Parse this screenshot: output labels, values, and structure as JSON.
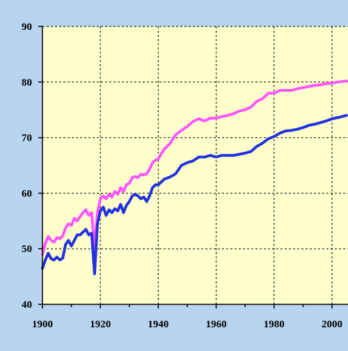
{
  "chart_data": {
    "type": "line",
    "title": "",
    "xlabel": "",
    "ylabel": "",
    "xlim": [
      1900,
      2005
    ],
    "ylim": [
      40,
      90
    ],
    "x_ticks": [
      1900,
      1920,
      1940,
      1960,
      1980,
      2000
    ],
    "y_ticks": [
      40,
      50,
      60,
      70,
      80,
      90
    ],
    "grid": true,
    "background": "#ffffcc",
    "page_background": "#b8d4f0",
    "series": [
      {
        "color": "#ff55ff",
        "x": [
          1900,
          1901,
          1902,
          1903,
          1904,
          1905,
          1906,
          1907,
          1908,
          1909,
          1910,
          1911,
          1912,
          1913,
          1914,
          1915,
          1916,
          1917,
          1918,
          1919,
          1920,
          1921,
          1922,
          1923,
          1924,
          1925,
          1926,
          1927,
          1928,
          1929,
          1930,
          1931,
          1932,
          1933,
          1934,
          1935,
          1936,
          1937,
          1938,
          1939,
          1940,
          1942,
          1944,
          1946,
          1948,
          1950,
          1952,
          1954,
          1956,
          1958,
          1960,
          1962,
          1964,
          1966,
          1968,
          1970,
          1972,
          1974,
          1976,
          1978,
          1980,
          1982,
          1984,
          1986,
          1988,
          1990,
          1992,
          1994,
          1996,
          1998,
          2000,
          2002,
          2005
        ],
        "values": [
          49.0,
          51.0,
          52.2,
          51.5,
          51.2,
          52.0,
          51.8,
          52.3,
          53.8,
          54.5,
          54.2,
          55.5,
          55.0,
          55.8,
          56.5,
          57.0,
          56.0,
          56.5,
          50.0,
          56.5,
          59.0,
          59.5,
          59.0,
          59.8,
          59.3,
          60.3,
          59.8,
          61.0,
          60.3,
          61.5,
          61.8,
          62.8,
          63.0,
          62.8,
          63.4,
          63.3,
          63.5,
          64.3,
          65.5,
          65.9,
          66.2,
          67.9,
          68.9,
          70.5,
          71.3,
          72.0,
          72.9,
          73.4,
          73.0,
          73.5,
          73.5,
          73.8,
          74.0,
          74.3,
          74.8,
          75.0,
          75.5,
          76.5,
          77.0,
          78.0,
          78.0,
          78.5,
          78.5,
          78.5,
          78.8,
          79.0,
          79.2,
          79.4,
          79.5,
          79.7,
          79.8,
          80.0,
          80.2
        ]
      },
      {
        "color": "#2233dd",
        "x": [
          1900,
          1901,
          1902,
          1903,
          1904,
          1905,
          1906,
          1907,
          1908,
          1909,
          1910,
          1911,
          1912,
          1913,
          1914,
          1915,
          1916,
          1917,
          1918,
          1919,
          1920,
          1921,
          1922,
          1923,
          1924,
          1925,
          1926,
          1927,
          1928,
          1929,
          1930,
          1931,
          1932,
          1933,
          1934,
          1935,
          1936,
          1937,
          1938,
          1939,
          1940,
          1942,
          1944,
          1946,
          1948,
          1950,
          1952,
          1954,
          1956,
          1958,
          1960,
          1962,
          1964,
          1966,
          1968,
          1970,
          1972,
          1974,
          1976,
          1978,
          1980,
          1982,
          1984,
          1986,
          1988,
          1990,
          1992,
          1994,
          1996,
          1998,
          2000,
          2002,
          2005
        ],
        "values": [
          46.5,
          48.0,
          49.2,
          48.2,
          48.0,
          48.5,
          48.0,
          48.3,
          50.8,
          51.5,
          50.5,
          51.5,
          52.5,
          52.5,
          53.0,
          53.5,
          52.5,
          52.8,
          45.5,
          54.5,
          56.8,
          57.5,
          56.0,
          57.0,
          56.5,
          57.2,
          56.8,
          58.0,
          56.5,
          57.8,
          58.5,
          59.5,
          59.8,
          59.5,
          59.0,
          59.3,
          58.5,
          59.5,
          61.0,
          61.5,
          61.5,
          62.5,
          62.9,
          63.5,
          65.0,
          65.5,
          65.8,
          66.5,
          66.5,
          66.8,
          66.5,
          66.8,
          66.8,
          66.8,
          67.0,
          67.2,
          67.5,
          68.4,
          69.0,
          69.8,
          70.2,
          70.8,
          71.2,
          71.3,
          71.5,
          71.8,
          72.2,
          72.4,
          72.7,
          73.0,
          73.4,
          73.6,
          74.0
        ]
      }
    ]
  }
}
